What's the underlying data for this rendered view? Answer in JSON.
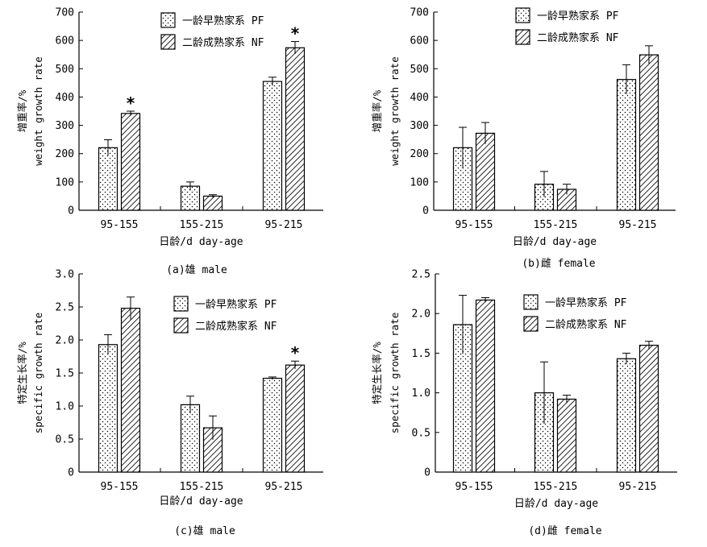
{
  "chart_data": [
    {
      "type": "bar",
      "caption": "(a)雄 male",
      "xlabel": "日龄/d day-age",
      "ylabel_cn": "增重率/%",
      "ylabel_en": "weight growth rate",
      "ylim": [
        0,
        700
      ],
      "yticks": [
        "0",
        "100",
        "200",
        "300",
        "400",
        "500",
        "600",
        "700"
      ],
      "categories": [
        "95-155",
        "155-215",
        "95-215"
      ],
      "legend": "top-right",
      "series": [
        {
          "name": "一龄早熟家系 PF",
          "values": [
            221,
            85,
            455
          ],
          "errors": [
            28,
            15,
            15
          ]
        },
        {
          "name": "二龄成熟家系 NF",
          "values": [
            342,
            50,
            574
          ],
          "errors": [
            8,
            5,
            22
          ]
        }
      ],
      "significance": [
        "*",
        "",
        "*"
      ]
    },
    {
      "type": "bar",
      "caption": "(b)雌 female",
      "xlabel": "日龄/d day-age",
      "ylabel_cn": "增重率/%",
      "ylabel_en": "weight growth rate",
      "ylim": [
        0,
        700
      ],
      "yticks": [
        "0",
        "100",
        "200",
        "300",
        "400",
        "500",
        "600",
        "700"
      ],
      "categories": [
        "95-155",
        "155-215",
        "95-215"
      ],
      "legend": "top-right",
      "series": [
        {
          "name": "一龄早熟家系 PF",
          "values": [
            221,
            92,
            462
          ],
          "errors": [
            72,
            45,
            52
          ]
        },
        {
          "name": "二龄成熟家系 NF",
          "values": [
            272,
            74,
            549
          ],
          "errors": [
            38,
            18,
            32
          ]
        }
      ],
      "significance": [
        "",
        "",
        ""
      ]
    },
    {
      "type": "bar",
      "caption": "(c)雄 male",
      "xlabel": "日龄/d day-age",
      "ylabel_cn": "特定生长率/%",
      "ylabel_en": "specific growth rate",
      "ylim": [
        0,
        3.0
      ],
      "yticks": [
        "0",
        "0.5",
        "1.0",
        "1.5",
        "2.0",
        "2.5",
        "3.0"
      ],
      "categories": [
        "95-155",
        "155-215",
        "95-215"
      ],
      "legend": "top-right",
      "series": [
        {
          "name": "一龄早熟家系 PF",
          "values": [
            1.93,
            1.02,
            1.42
          ],
          "errors": [
            0.15,
            0.13,
            0.02
          ]
        },
        {
          "name": "二龄成熟家系 NF",
          "values": [
            2.48,
            0.67,
            1.62
          ],
          "errors": [
            0.17,
            0.18,
            0.06
          ]
        }
      ],
      "significance": [
        "",
        "",
        "*"
      ]
    },
    {
      "type": "bar",
      "caption": "(d)雌 female",
      "xlabel": "日龄/d day-age",
      "ylabel_cn": "特定生长率/%",
      "ylabel_en": "specific growth rate",
      "ylim": [
        0,
        2.5
      ],
      "yticks": [
        "0",
        "0.5",
        "1.0",
        "1.5",
        "2.0",
        "2.5"
      ],
      "categories": [
        "95-155",
        "155-215",
        "95-215"
      ],
      "legend": "top-right",
      "series": [
        {
          "name": "一龄早熟家系 PF",
          "values": [
            1.86,
            1.0,
            1.43
          ],
          "errors": [
            0.37,
            0.39,
            0.07
          ]
        },
        {
          "name": "二龄成熟家系 NF",
          "values": [
            2.17,
            0.92,
            1.6
          ],
          "errors": [
            0.03,
            0.05,
            0.05
          ]
        }
      ],
      "significance": [
        "",
        "",
        ""
      ]
    }
  ]
}
